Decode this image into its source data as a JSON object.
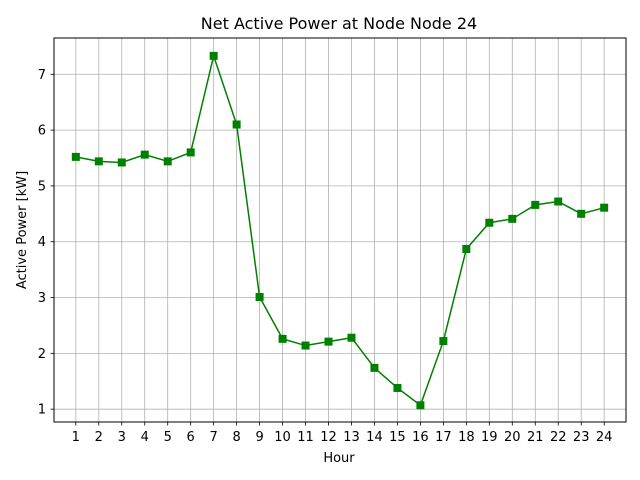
{
  "chart_data": {
    "type": "line",
    "title": "Net Active Power at Node Node 24",
    "xlabel": "Hour",
    "ylabel": "Active Power [kW]",
    "x": [
      1,
      2,
      3,
      4,
      5,
      6,
      7,
      8,
      9,
      10,
      11,
      12,
      13,
      14,
      15,
      16,
      17,
      18,
      19,
      20,
      21,
      22,
      23,
      24
    ],
    "x_tick_labels": [
      "1",
      "2",
      "3",
      "4",
      "5",
      "6",
      "7",
      "8",
      "9",
      "10",
      "11",
      "12",
      "13",
      "14",
      "15",
      "16",
      "17",
      "18",
      "19",
      "20",
      "21",
      "22",
      "23",
      "24"
    ],
    "y_ticks": [
      1,
      2,
      3,
      4,
      5,
      6,
      7
    ],
    "y_tick_labels": [
      "1",
      "2",
      "3",
      "4",
      "5",
      "6",
      "7"
    ],
    "xlim": [
      0.05,
      24.95
    ],
    "ylim": [
      0.77,
      7.65
    ],
    "grid": true,
    "series": [
      {
        "color": "#008000",
        "marker": "square",
        "values": [
          5.52,
          5.44,
          5.42,
          5.56,
          5.44,
          5.6,
          7.33,
          6.1,
          3.01,
          2.26,
          2.14,
          2.21,
          2.28,
          1.74,
          1.38,
          1.07,
          2.22,
          3.87,
          4.34,
          4.41,
          4.66,
          4.72,
          4.5,
          4.61
        ]
      }
    ]
  }
}
